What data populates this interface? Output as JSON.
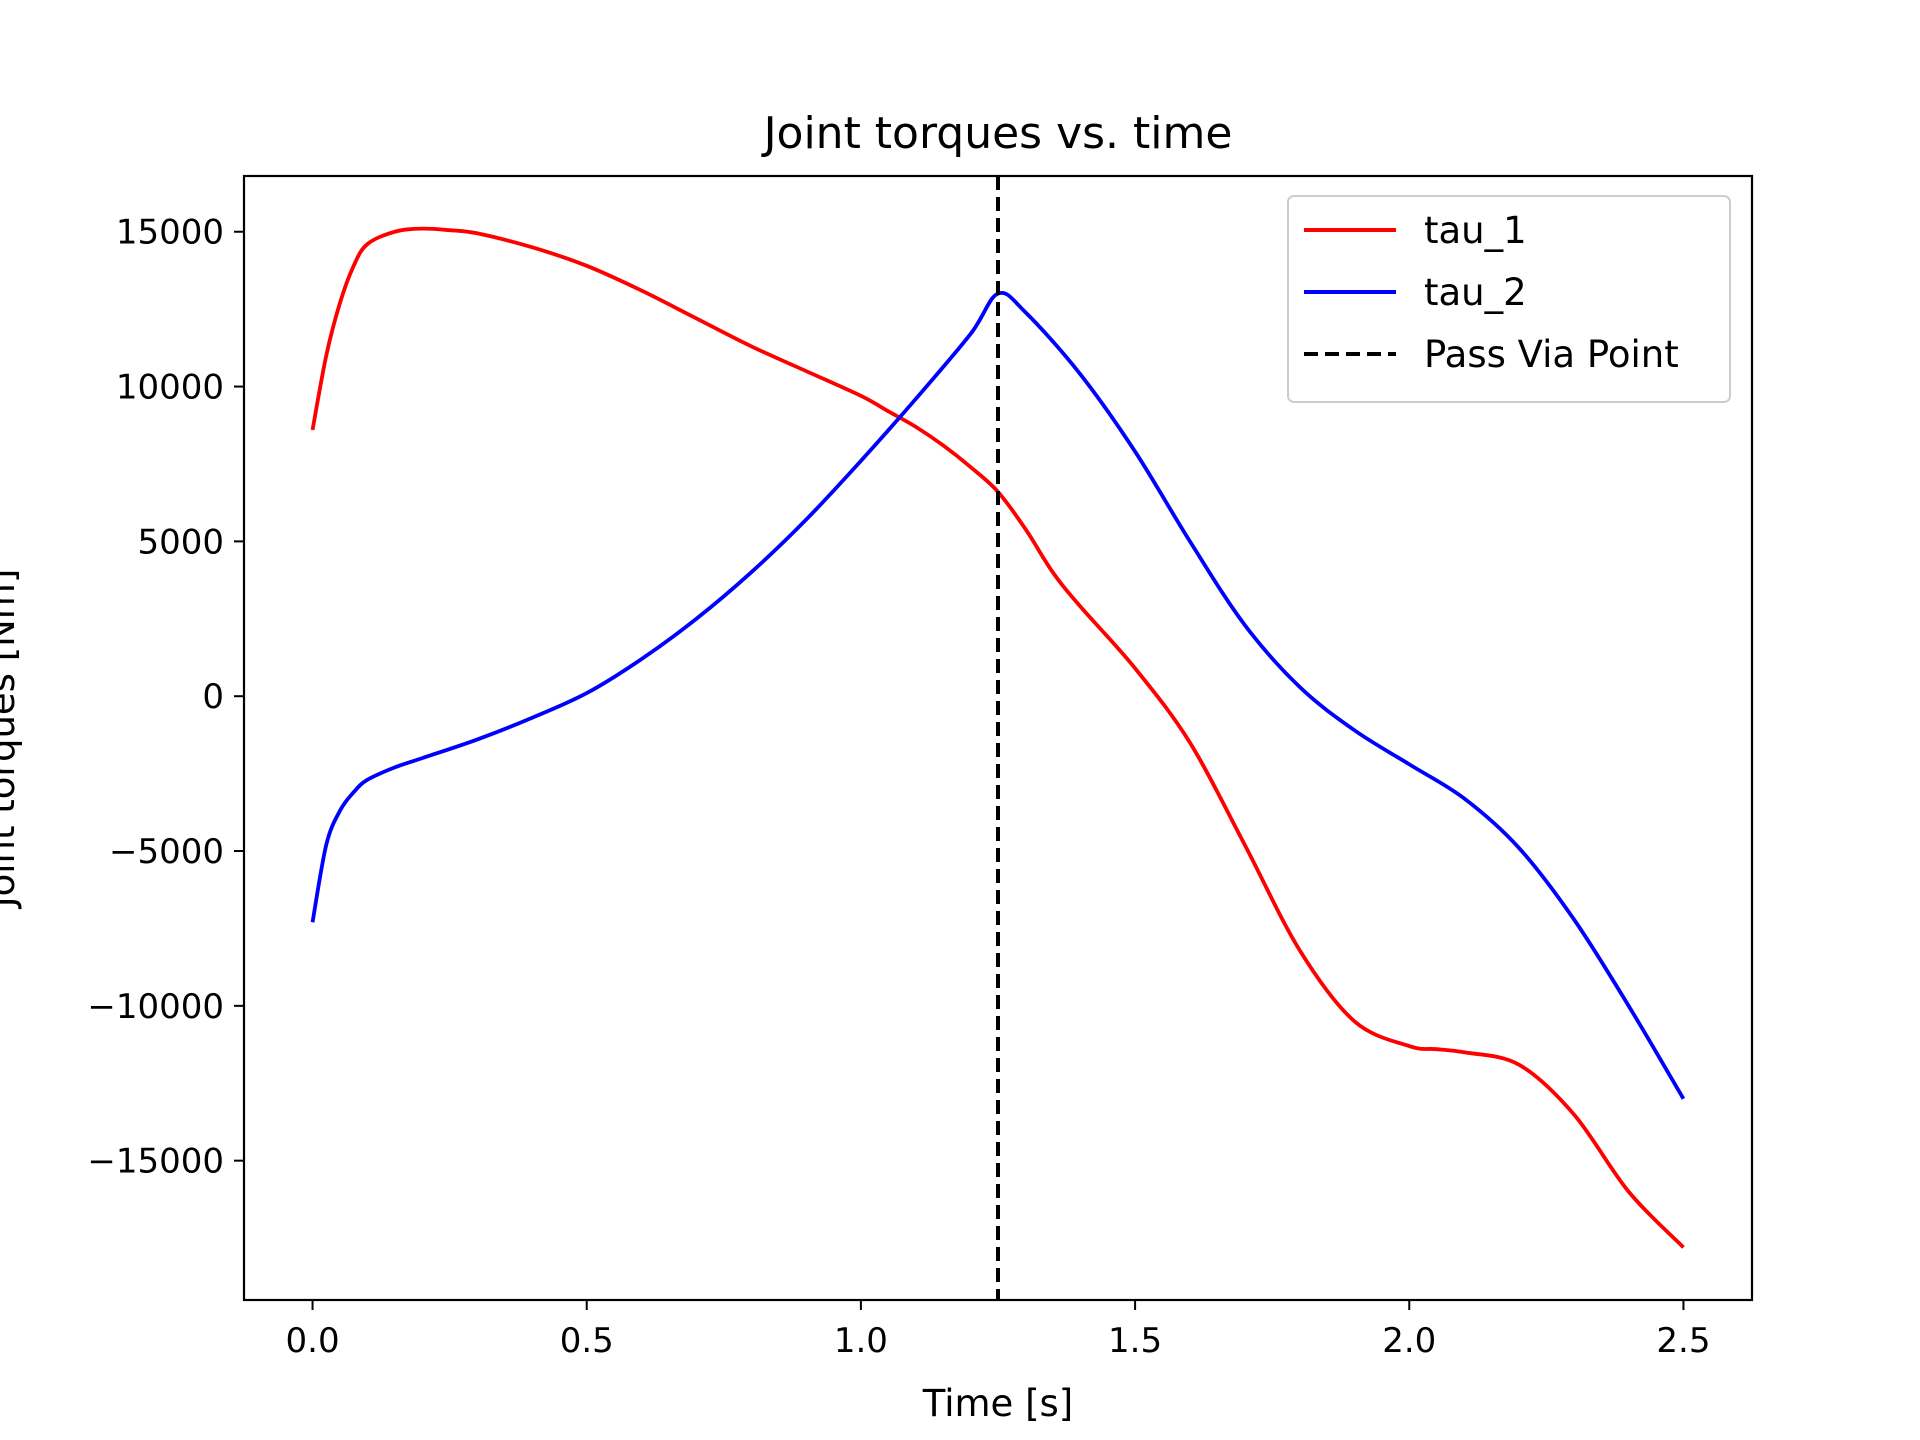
{
  "chart_data": {
    "type": "line",
    "title": "Joint torques vs. time",
    "xlabel": "Time [s]",
    "ylabel": "Joint torques [Nm]",
    "xlim": [
      -0.125,
      2.625
    ],
    "ylim": [
      -19500,
      16800
    ],
    "xticks": [
      0.0,
      0.5,
      1.0,
      1.5,
      2.0,
      2.5
    ],
    "xtick_labels": [
      "0.0",
      "0.5",
      "1.0",
      "1.5",
      "2.0",
      "2.5"
    ],
    "yticks": [
      15000,
      10000,
      5000,
      0,
      -5000,
      -10000,
      -15000
    ],
    "ytick_labels": [
      "15000",
      "10000",
      "5000",
      "0",
      "−5000",
      "−10000",
      "−15000"
    ],
    "grid": false,
    "legend_position": "top-right",
    "series": [
      {
        "name": "tau_1",
        "color": "#ff0000",
        "style": "solid",
        "x": [
          0.0,
          0.025,
          0.05,
          0.075,
          0.1,
          0.15,
          0.2,
          0.25,
          0.3,
          0.4,
          0.5,
          0.6,
          0.7,
          0.8,
          0.9,
          1.0,
          1.05,
          1.1,
          1.15,
          1.2,
          1.25,
          1.3,
          1.35,
          1.4,
          1.5,
          1.6,
          1.7,
          1.8,
          1.9,
          2.0,
          2.05,
          2.1,
          2.2,
          2.3,
          2.4,
          2.5
        ],
        "y": [
          8600,
          11000,
          12700,
          13900,
          14600,
          15000,
          15100,
          15050,
          14950,
          14500,
          13900,
          13100,
          12200,
          11300,
          10500,
          9700,
          9200,
          8700,
          8100,
          7400,
          6600,
          5400,
          4000,
          2900,
          900,
          -1500,
          -4800,
          -8200,
          -10500,
          -11300,
          -11400,
          -11500,
          -11900,
          -13500,
          -16000,
          -17800
        ]
      },
      {
        "name": "tau_2",
        "color": "#0000ff",
        "style": "solid",
        "x": [
          0.0,
          0.025,
          0.05,
          0.075,
          0.1,
          0.15,
          0.2,
          0.3,
          0.4,
          0.5,
          0.6,
          0.7,
          0.8,
          0.9,
          1.0,
          1.1,
          1.2,
          1.25,
          1.3,
          1.4,
          1.5,
          1.6,
          1.7,
          1.8,
          1.9,
          2.0,
          2.1,
          2.2,
          2.3,
          2.4,
          2.5
        ],
        "y": [
          -7300,
          -4800,
          -3700,
          -3100,
          -2700,
          -2300,
          -2000,
          -1400,
          -700,
          100,
          1200,
          2500,
          4000,
          5700,
          7600,
          9600,
          11700,
          13000,
          12400,
          10400,
          7900,
          5000,
          2300,
          300,
          -1100,
          -2200,
          -3300,
          -4900,
          -7200,
          -10000,
          -13000
        ]
      }
    ],
    "vlines": [
      {
        "name": "Pass Via Point",
        "x": 1.25,
        "color": "#000000",
        "style": "dashed"
      }
    ]
  }
}
